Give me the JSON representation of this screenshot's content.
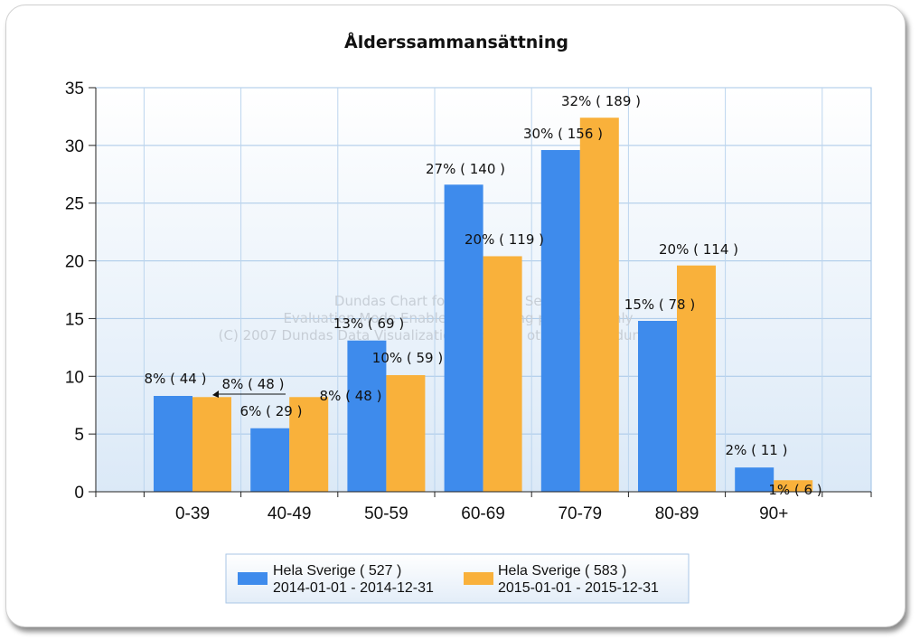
{
  "chart_data": {
    "type": "bar",
    "title": "Ålderssammansättning",
    "categories": [
      "0-39",
      "40-49",
      "50-59",
      "60-69",
      "70-79",
      "80-89",
      "90+"
    ],
    "ylim": [
      0,
      35
    ],
    "yticks": [
      "0",
      "5",
      "10",
      "15",
      "20",
      "25",
      "30",
      "35"
    ],
    "grid": true,
    "legend_position": "bottom",
    "series": [
      {
        "name": "Hela Sverige  ( 527 )",
        "period": "2014-01-01 - 2014-12-31",
        "color": "#3e8bec",
        "values": [
          8.3,
          5.5,
          13.1,
          26.6,
          29.6,
          14.8,
          2.1
        ],
        "labels": [
          "8% ( 44 )",
          "6% ( 29 )",
          "13% ( 69 )",
          "27% ( 140 )",
          "30% ( 156 )",
          "15% ( 78 )",
          "2% ( 11 )"
        ]
      },
      {
        "name": "Hela Sverige  ( 583 )",
        "period": "2015-01-01 - 2015-12-31",
        "color": "#f9b13b",
        "values": [
          8.2,
          8.2,
          10.1,
          20.4,
          32.4,
          19.6,
          1.0
        ],
        "labels": [
          "8% ( 48 )",
          "8% ( 48 )",
          "10% ( 59 )",
          "20% ( 119 )",
          "32% ( 189 )",
          "20% ( 114 )",
          "1% ( 6 )"
        ]
      }
    ],
    "watermark": [
      "Dundas Chart for Reporting Services",
      "Evaluation Mode Enabled, for testing purposes only",
      "(C) 2007 Dundas Data Visualization, Inc. and others, www.dundas.com"
    ]
  }
}
